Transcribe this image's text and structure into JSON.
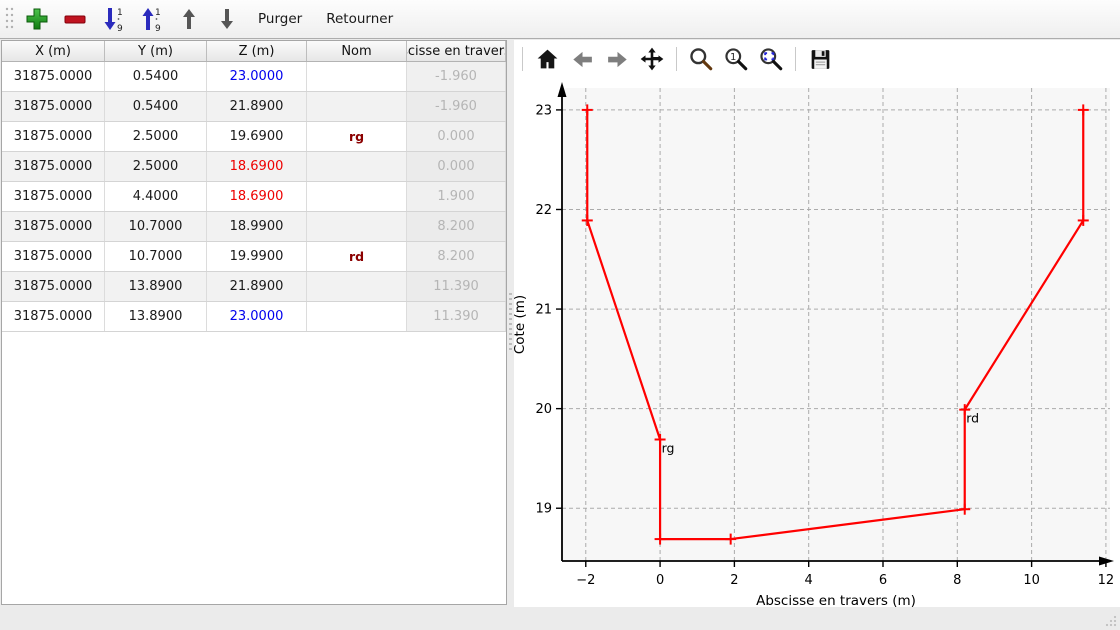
{
  "toolbar": {
    "purger_label": "Purger",
    "retourner_label": "Retourner",
    "icons": [
      "drag-handle",
      "add-row",
      "remove-row",
      "sort-ascending-1-9",
      "sort-descending-1-9",
      "move-row-up",
      "move-row-down"
    ]
  },
  "table": {
    "columns": [
      "X (m)",
      "Y (m)",
      "Z (m)",
      "Nom",
      "scisse en travers"
    ],
    "rows": [
      {
        "x": "31875.0000",
        "y": "0.5400",
        "z": "23.0000",
        "z_color": "blue",
        "nom": "",
        "abscisse": "-1.960"
      },
      {
        "x": "31875.0000",
        "y": "0.5400",
        "z": "21.8900",
        "z_color": null,
        "nom": "",
        "abscisse": "-1.960"
      },
      {
        "x": "31875.0000",
        "y": "2.5000",
        "z": "19.6900",
        "z_color": null,
        "nom": "rg",
        "abscisse": "0.000"
      },
      {
        "x": "31875.0000",
        "y": "2.5000",
        "z": "18.6900",
        "z_color": "red",
        "nom": "",
        "abscisse": "0.000"
      },
      {
        "x": "31875.0000",
        "y": "4.4000",
        "z": "18.6900",
        "z_color": "red",
        "nom": "",
        "abscisse": "1.900"
      },
      {
        "x": "31875.0000",
        "y": "10.7000",
        "z": "18.9900",
        "z_color": null,
        "nom": "",
        "abscisse": "8.200"
      },
      {
        "x": "31875.0000",
        "y": "10.7000",
        "z": "19.9900",
        "z_color": null,
        "nom": "rd",
        "abscisse": "8.200"
      },
      {
        "x": "31875.0000",
        "y": "13.8900",
        "z": "21.8900",
        "z_color": null,
        "nom": "",
        "abscisse": "11.390"
      },
      {
        "x": "31875.0000",
        "y": "13.8900",
        "z": "23.0000",
        "z_color": "blue",
        "nom": "",
        "abscisse": "11.390"
      }
    ]
  },
  "plot_toolbar": {
    "icons": [
      "home",
      "back",
      "forward",
      "pan",
      "zoom",
      "zoom-original",
      "zoom-dynamic",
      "save"
    ]
  },
  "chart_data": {
    "type": "line",
    "title": "",
    "xlabel": "Abscisse en travers (m)",
    "ylabel": "Cote (m)",
    "x": [
      -1.96,
      -1.96,
      0.0,
      0.0,
      1.9,
      8.2,
      8.2,
      11.39,
      11.39
    ],
    "y": [
      23.0,
      21.89,
      19.69,
      18.69,
      18.69,
      18.99,
      19.99,
      21.89,
      23.0
    ],
    "annotations": [
      {
        "text": "rg",
        "x": 0.0,
        "y": 19.69
      },
      {
        "text": "rd",
        "x": 8.2,
        "y": 19.99
      }
    ],
    "xticks": [
      -2,
      0,
      2,
      4,
      6,
      8,
      10,
      12
    ],
    "xtick_labels": [
      "−2",
      "0",
      "2",
      "4",
      "6",
      "8",
      "10",
      "12"
    ],
    "yticks": [
      19,
      20,
      21,
      22,
      23
    ],
    "ytick_labels": [
      "19",
      "20",
      "21",
      "22",
      "23"
    ],
    "xlim": [
      -2.64,
      12.11
    ],
    "ylim": [
      18.47,
      23.22
    ],
    "grid": true,
    "legend": "none",
    "line_color": "#ff0000",
    "marker": "+"
  },
  "colors": {
    "line_red": "#ff0000",
    "z_blue": "#0000ee",
    "z_red": "#ee0000",
    "nom_dark_red": "#8b0000",
    "grid_gray": "#ababab",
    "axes_bg": "#f7f7f7",
    "readonly_text": "#b5b5b5"
  }
}
